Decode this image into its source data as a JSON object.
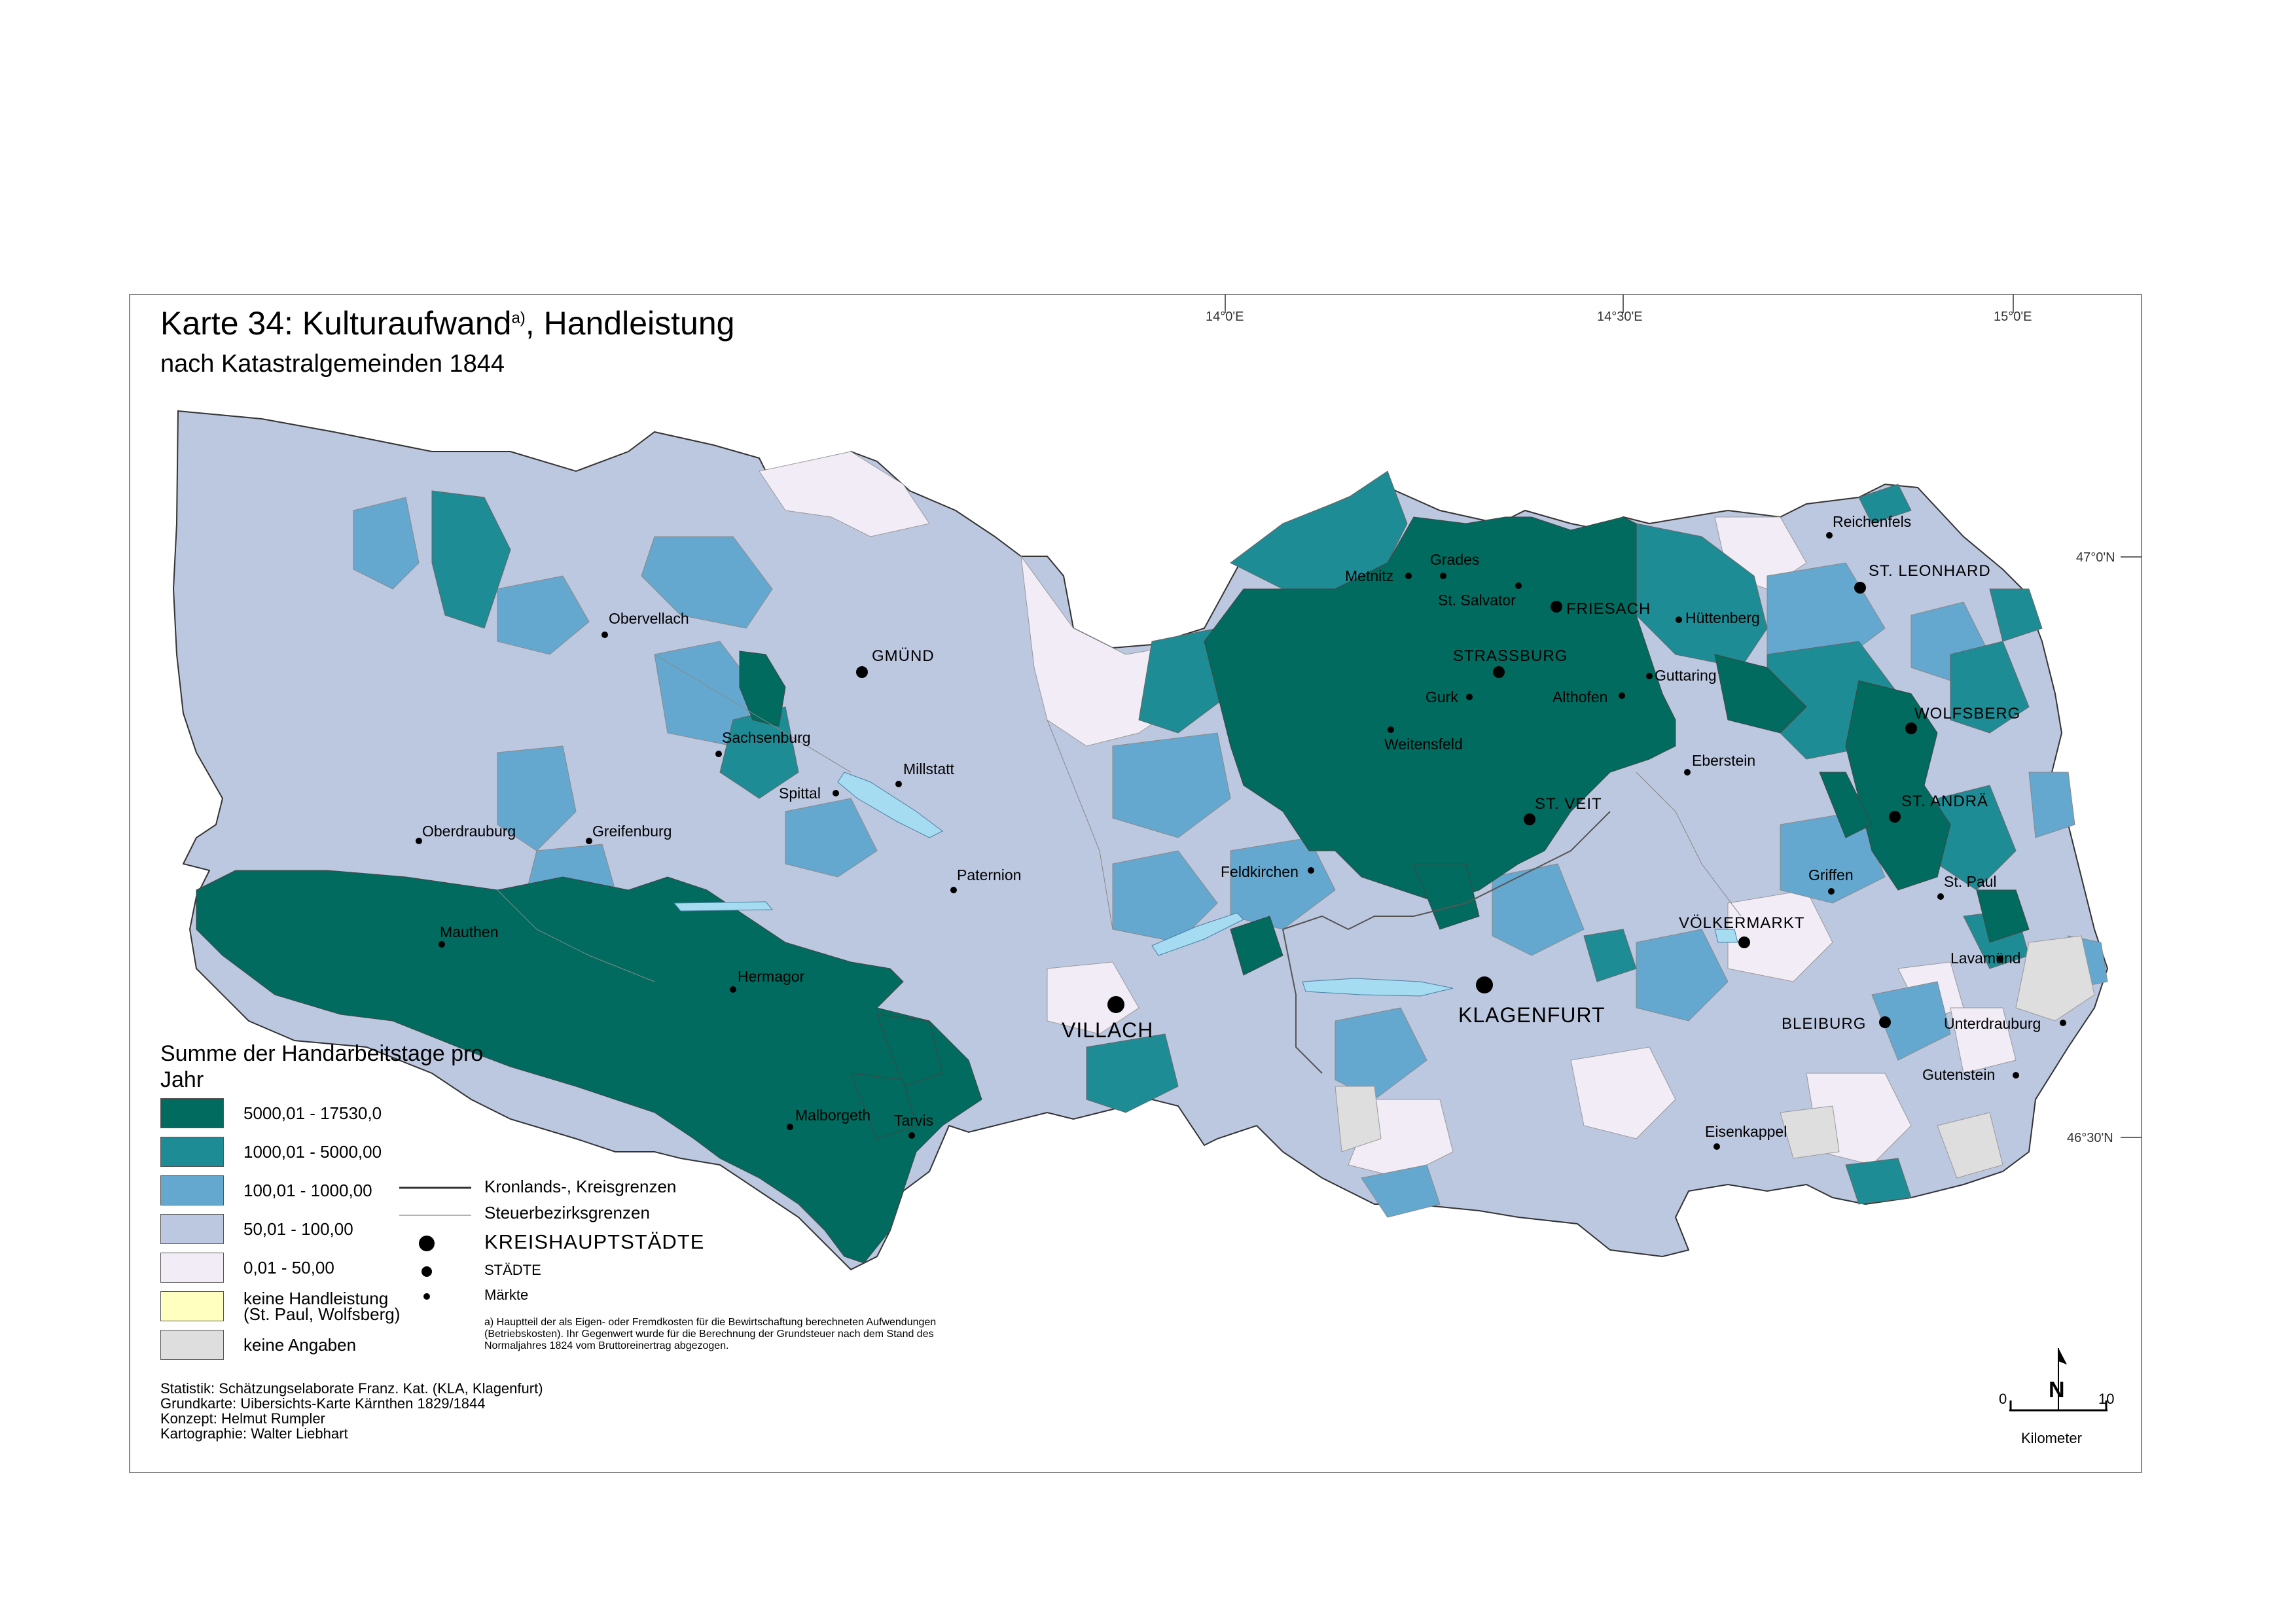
{
  "title": {
    "main": "Karte 34: Kulturaufwand",
    "sup": "a)",
    "main_tail": ", Handleistung",
    "subtitle": "nach Katastralgemeinden 1844"
  },
  "colors": {
    "c1": "#006b5e",
    "c2": "#1e8c94",
    "c3": "#64a8d0",
    "c4": "#bcc7e0",
    "c5": "#f1ecf6",
    "c6": "#ffffc0",
    "c7": "#dedede",
    "water": "#a6dcf2"
  },
  "legend": {
    "title": "Summe der Handarbeitstage pro Jahr",
    "classes": [
      {
        "label": "5000,01 - 17530,0",
        "color": "#006b5e"
      },
      {
        "label": "1000,01 - 5000,00",
        "color": "#1e8c94"
      },
      {
        "label": "100,01 - 1000,00",
        "color": "#64a8d0"
      },
      {
        "label": "50,01 - 100,00",
        "color": "#bcc7e0"
      },
      {
        "label": "0,01 - 50,00",
        "color": "#f1ecf6"
      },
      {
        "label": "keine Handleistung\n(St. Paul, Wolfsberg)",
        "color": "#ffffc0"
      },
      {
        "label": "keine Angaben",
        "color": "#dedede"
      }
    ],
    "lines": {
      "kronland": "Kronlands-, Kreisgrenzen",
      "steuer": "Steuerbezirksgrenzen"
    },
    "points": {
      "kreis": "KREISHAUPTSTÄDTE",
      "staedte": "STÄDTE",
      "maerkte": "Märkte"
    }
  },
  "footnote": "a) Hauptteil der als Eigen- oder Fremdkosten für die Bewirtschaftung berechneten Aufwendungen (Betriebskosten). Ihr Gegenwert wurde für die Berechnung der Grundsteuer nach dem Stand des Normaljahres 1824 vom Bruttoreinertrag abgezogen.",
  "credits": [
    "Statistik: Schätzungselaborate Franz. Kat. (KLA, Klagenfurt)",
    "Grundkarte: Uibersichts-Karte Kärnthen 1829/1844",
    "Konzept: Helmut Rumpler",
    "Kartographie: Walter Liebhart"
  ],
  "scale": {
    "zero": "0",
    "ten": "10",
    "unit": "Kilometer",
    "north": "N"
  },
  "graticule": {
    "lon": [
      "14°0'E",
      "14°30'E",
      "15°0'E"
    ],
    "lat": [
      "47°0'N",
      "46°30'N"
    ]
  },
  "places": {
    "kreis": [
      "VILLACH",
      "KLAGENFURT"
    ],
    "staedte": [
      "GMÜND",
      "FRIESACH",
      "STRASSBURG",
      "ST. VEIT",
      "WOLFSBERG",
      "ST. ANDRÄ",
      "ST. LEONHARD",
      "VÖLKERMARKT",
      "BLEIBURG"
    ],
    "maerkte": [
      "Obervellach",
      "Sachsenburg",
      "Spittal",
      "Millstatt",
      "Oberdrauburg",
      "Greifenburg",
      "Paternion",
      "Mauthen",
      "Hermagor",
      "Malborgeth",
      "Tarvis",
      "Feldkirchen",
      "Metnitz",
      "Grades",
      "St. Salvator",
      "Hüttenberg",
      "Gurk",
      "Althofen",
      "Guttaring",
      "Weitensfeld",
      "Eberstein",
      "Reichenfels",
      "Griffen",
      "St. Paul",
      "Lavamünd",
      "Unterdrauburg",
      "Gutenstein",
      "Eisenkappel"
    ]
  }
}
